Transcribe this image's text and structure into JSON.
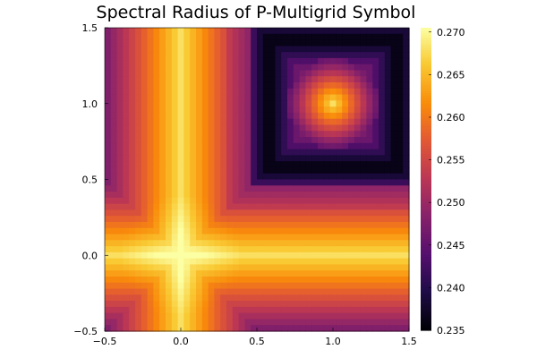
{
  "chart_data": {
    "type": "heatmap",
    "title": "Spectral Radius of P-Multigrid Symbol",
    "xlabel": "",
    "ylabel": "",
    "xlim": [
      -0.5,
      1.5
    ],
    "ylim": [
      -0.5,
      1.5
    ],
    "x_ticks": [
      "−0.5",
      "0.0",
      "0.5",
      "1.0",
      "1.5"
    ],
    "y_ticks": [
      "−0.5",
      "0.0",
      "0.5",
      "1.0",
      "1.5"
    ],
    "x_tick_values": [
      -0.5,
      0.0,
      0.5,
      1.0,
      1.5
    ],
    "y_tick_values": [
      -0.5,
      0.0,
      0.5,
      1.0,
      1.5
    ],
    "colorbar": {
      "range": [
        0.235,
        0.2705
      ],
      "ticks": [
        "0.235",
        "0.240",
        "0.245",
        "0.250",
        "0.255",
        "0.260",
        "0.265",
        "0.270"
      ],
      "tick_values": [
        0.235,
        0.24,
        0.245,
        0.25,
        0.255,
        0.26,
        0.265,
        0.27
      ],
      "colormap": "inferno"
    },
    "grid": false,
    "legend": "colorbar-right"
  }
}
